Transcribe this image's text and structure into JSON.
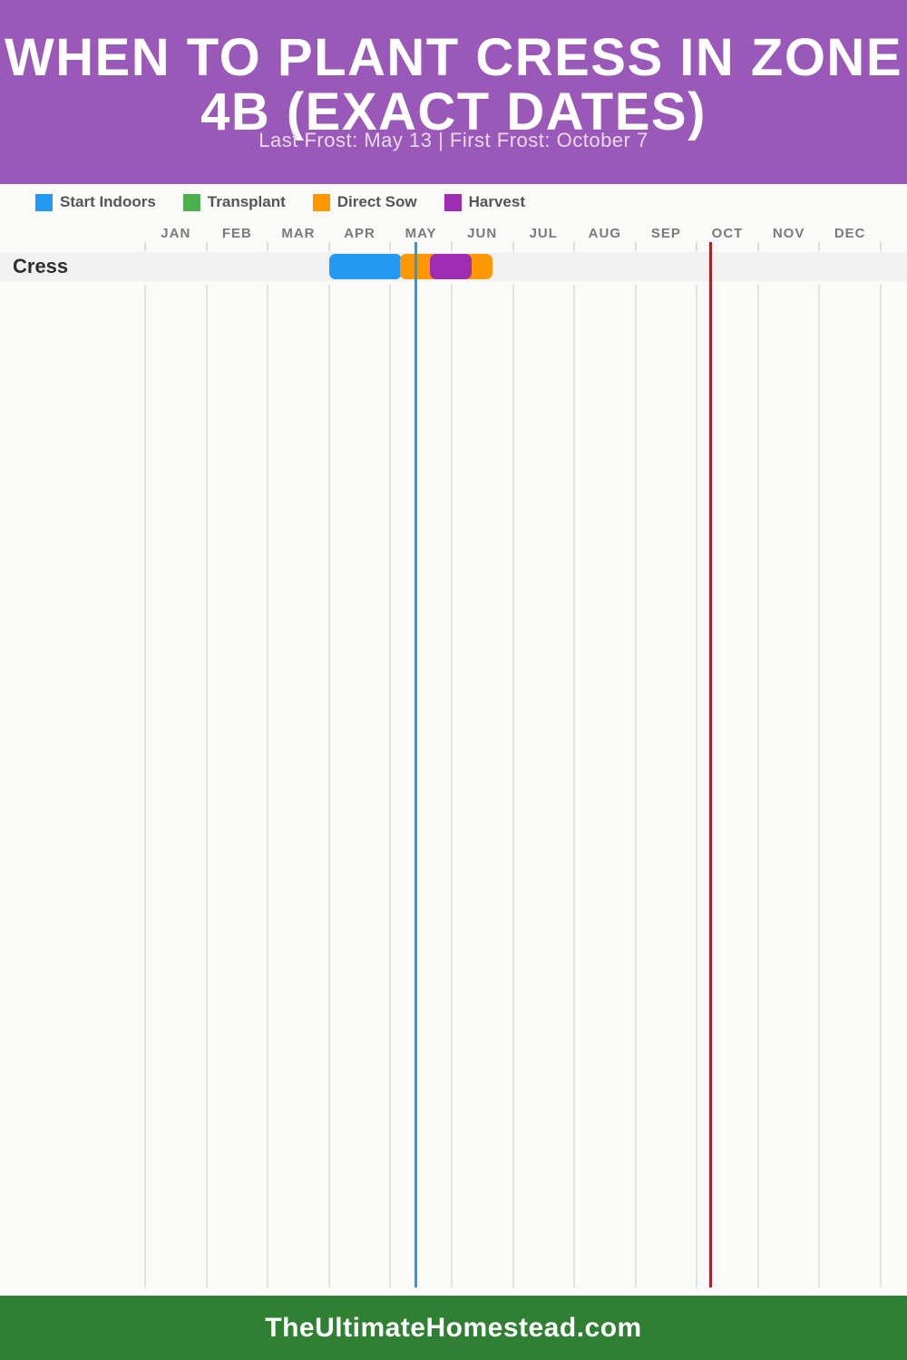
{
  "header": {
    "title_line1": "WHEN TO PLANT CRESS IN ZONE",
    "title_line2": "4B (EXACT DATES)",
    "subtitle": "Last Frost: May 13 | First Frost: October 7",
    "bg_color": "#9a58b8"
  },
  "legend": {
    "items": [
      {
        "name": "start-indoors",
        "label": "Start Indoors",
        "color": "#2499f1"
      },
      {
        "name": "transplant",
        "label": "Transplant",
        "color": "#4caf50"
      },
      {
        "name": "direct-sow",
        "label": "Direct Sow",
        "color": "#ff9800"
      },
      {
        "name": "harvest",
        "label": "Harvest",
        "color": "#9f2db3"
      }
    ]
  },
  "chart_data": {
    "type": "gantt",
    "title": "When to Plant Cress in Zone 4b (Exact Dates)",
    "months": [
      "JAN",
      "FEB",
      "MAR",
      "APR",
      "MAY",
      "JUN",
      "JUL",
      "AUG",
      "SEP",
      "OCT",
      "NOV",
      "DEC"
    ],
    "x_range": [
      "Jan 1",
      "Dec 31"
    ],
    "grid": true,
    "legend_position": "top",
    "rows": [
      {
        "label": "Cress",
        "bars": [
          {
            "series": "Start Indoors",
            "color": "#2499f1",
            "start_month": 3,
            "start_day": 1,
            "end_month": 4,
            "end_day": 7,
            "start_label": "Apr 1",
            "end_label": "May 7"
          },
          {
            "series": "Direct Sow",
            "color": "#ff9800",
            "start_month": 4,
            "start_day": 6,
            "end_month": 5,
            "end_day": 21,
            "start_label": "May 6",
            "end_label": "Jun 21"
          },
          {
            "series": "Harvest",
            "color": "#9f2db3",
            "start_month": 4,
            "start_day": 21,
            "end_month": 5,
            "end_day": 11,
            "start_label": "May 21",
            "end_label": "Jun 11"
          }
        ]
      }
    ],
    "markers": [
      {
        "name": "last-frost",
        "label": "Last Frost: May 13",
        "color": "#2499f1",
        "month": 4,
        "day": 13
      },
      {
        "name": "first-frost",
        "label": "First Frost: October 7",
        "color": "#b01f1f",
        "month": 9,
        "day": 7
      }
    ]
  },
  "footer": {
    "text": "TheUltimateHomestead.com",
    "bg_color": "#2f8033"
  }
}
